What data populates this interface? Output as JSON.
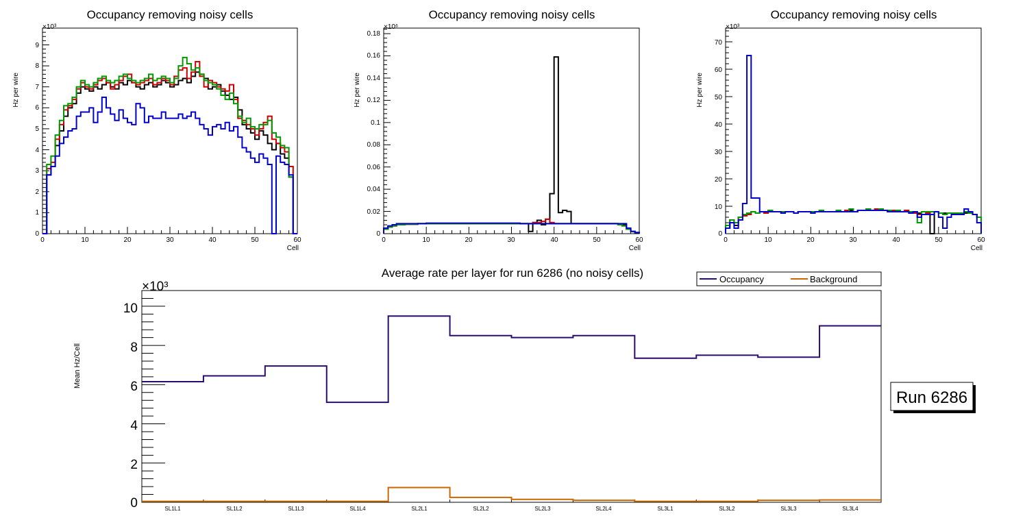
{
  "chart_data": [
    {
      "type": "line",
      "title": "Occupancy removing noisy cells",
      "xlabel": "Cell",
      "ylabel": "Hz per wire",
      "y_multiplier": "×10³",
      "xlim": [
        0,
        60
      ],
      "ylim": [
        0,
        9.8
      ],
      "x_ticks": [
        "0",
        "10",
        "20",
        "30",
        "40",
        "50",
        "60"
      ],
      "y_ticks": [
        "0",
        "1",
        "2",
        "3",
        "4",
        "5",
        "6",
        "7",
        "8",
        "9"
      ],
      "series": [
        {
          "name": "layer-black",
          "color": "#000000",
          "values": [
            0,
            2.8,
            3.2,
            4.2,
            4.9,
            5.6,
            6.0,
            6.2,
            6.7,
            7.0,
            6.9,
            6.8,
            7.0,
            6.9,
            7.1,
            7.2,
            7.0,
            6.9,
            7.2,
            7.1,
            7.3,
            7.2,
            7.0,
            6.9,
            7.1,
            7.2,
            7.0,
            7.1,
            7.3,
            7.2,
            7.0,
            7.1,
            7.3,
            7.4,
            7.2,
            7.5,
            7.7,
            7.6,
            7.4,
            6.9,
            7.0,
            7.1,
            6.8,
            6.6,
            6.4,
            6.5,
            5.9,
            5.2,
            5.0,
            4.8,
            4.5,
            4.9,
            4.7,
            4.3,
            4.0,
            4.3,
            3.8,
            3.6,
            2.7,
            0
          ]
        },
        {
          "name": "layer-red",
          "color": "#cc0000",
          "values": [
            0,
            3.1,
            3.4,
            4.5,
            5.2,
            5.9,
            6.1,
            6.4,
            6.9,
            7.2,
            7.0,
            6.9,
            7.1,
            7.3,
            7.4,
            7.2,
            6.9,
            7.1,
            7.3,
            7.5,
            7.6,
            7.2,
            7.1,
            7.2,
            7.3,
            7.4,
            7.1,
            7.2,
            7.4,
            7.3,
            7.1,
            7.5,
            7.8,
            7.9,
            7.4,
            7.7,
            8.2,
            7.5,
            7.0,
            7.3,
            7.2,
            7.0,
            6.9,
            6.8,
            7.1,
            6.4,
            5.5,
            5.4,
            5.2,
            5.0,
            4.7,
            5.0,
            5.3,
            5.6,
            4.5,
            4.3,
            4.1,
            3.9,
            3.2,
            0
          ]
        },
        {
          "name": "layer-green",
          "color": "#009900",
          "values": [
            0,
            3.3,
            3.7,
            4.7,
            5.4,
            6.1,
            6.2,
            6.5,
            7.0,
            7.3,
            7.1,
            7.0,
            7.2,
            7.4,
            7.5,
            7.3,
            7.2,
            7.3,
            7.5,
            7.6,
            7.4,
            7.3,
            7.2,
            7.3,
            7.4,
            7.6,
            7.3,
            7.4,
            7.5,
            7.4,
            7.2,
            7.4,
            8.0,
            8.4,
            8.1,
            7.8,
            7.9,
            7.6,
            7.3,
            7.2,
            7.1,
            6.9,
            6.6,
            6.4,
            6.7,
            6.2,
            5.6,
            5.3,
            5.5,
            5.1,
            5.0,
            5.2,
            5.2,
            5.4,
            4.8,
            4.6,
            4.2,
            4.1,
            2.7,
            0
          ]
        },
        {
          "name": "layer-blue",
          "color": "#0000cc",
          "values": [
            0,
            2.8,
            3.2,
            3.7,
            4.3,
            4.6,
            4.9,
            5.0,
            5.6,
            5.8,
            5.8,
            6.0,
            5.3,
            5.8,
            6.5,
            6.0,
            5.7,
            5.4,
            5.9,
            5.5,
            5.3,
            5.2,
            6.2,
            6.0,
            5.3,
            5.6,
            5.5,
            5.5,
            5.8,
            5.5,
            5.5,
            5.5,
            5.7,
            5.5,
            5.6,
            5.8,
            5.5,
            5.2,
            5.0,
            4.7,
            5.1,
            5.2,
            5.0,
            5.3,
            4.9,
            5.1,
            4.6,
            4.1,
            3.9,
            3.6,
            3.4,
            3.8,
            3.6,
            3.3,
            0,
            3.7,
            3.4,
            3.3,
            2.8,
            0
          ]
        }
      ]
    },
    {
      "type": "line",
      "title": "Occupancy removing noisy cells",
      "xlabel": "Cell",
      "ylabel": "Hz per wire",
      "y_multiplier": "×10⁶",
      "xlim": [
        0,
        60
      ],
      "ylim": [
        0,
        0.185
      ],
      "x_ticks": [
        "0",
        "10",
        "20",
        "30",
        "40",
        "50",
        "60"
      ],
      "y_ticks": [
        "0",
        "0.02",
        "0.04",
        "0.06",
        "0.08",
        "0.1",
        "0.12",
        "0.14",
        "0.16",
        "0.18"
      ],
      "series": [
        {
          "name": "layer-black",
          "color": "#000000",
          "values": [
            0.004,
            0.006,
            0.007,
            0.008,
            0.008,
            0.0085,
            0.0085,
            0.0085,
            0.009,
            0.009,
            0.009,
            0.009,
            0.009,
            0.009,
            0.009,
            0.009,
            0.009,
            0.009,
            0.009,
            0.009,
            0.009,
            0.009,
            0.009,
            0.009,
            0.009,
            0.009,
            0.009,
            0.009,
            0.009,
            0.009,
            0.009,
            0.009,
            0.009,
            0.009,
            0.002,
            0.01,
            0.012,
            0.008,
            0.013,
            0.036,
            0.159,
            0.019,
            0.021,
            0.02,
            0.009,
            0.009,
            0.009,
            0.009,
            0.009,
            0.009,
            0.009,
            0.009,
            0.009,
            0.009,
            0.009,
            0.008,
            0.008,
            0.004,
            0.002,
            0.001
          ]
        },
        {
          "name": "layer-red",
          "color": "#cc0000",
          "values": [
            0.004,
            0.006,
            0.007,
            0.008,
            0.008,
            0.0085,
            0.0085,
            0.0085,
            0.009,
            0.009,
            0.009,
            0.009,
            0.009,
            0.009,
            0.009,
            0.009,
            0.009,
            0.009,
            0.009,
            0.009,
            0.009,
            0.009,
            0.009,
            0.009,
            0.009,
            0.009,
            0.009,
            0.009,
            0.009,
            0.009,
            0.009,
            0.009,
            0.009,
            0.009,
            0.009,
            0.01,
            0.01,
            0.011,
            0.013,
            0.01,
            0.009,
            0.009,
            0.009,
            0.009,
            0.009,
            0.009,
            0.009,
            0.009,
            0.009,
            0.009,
            0.009,
            0.009,
            0.009,
            0.009,
            0.009,
            0.008,
            0.007,
            0.004,
            0.002,
            0.001
          ]
        },
        {
          "name": "layer-green",
          "color": "#009900",
          "values": [
            0.004,
            0.006,
            0.007,
            0.008,
            0.008,
            0.0085,
            0.0085,
            0.0085,
            0.009,
            0.009,
            0.009,
            0.009,
            0.009,
            0.009,
            0.009,
            0.009,
            0.009,
            0.009,
            0.009,
            0.009,
            0.009,
            0.009,
            0.009,
            0.009,
            0.009,
            0.009,
            0.009,
            0.009,
            0.009,
            0.009,
            0.009,
            0.009,
            0.009,
            0.009,
            0.009,
            0.009,
            0.009,
            0.009,
            0.009,
            0.009,
            0.009,
            0.009,
            0.009,
            0.009,
            0.009,
            0.009,
            0.009,
            0.009,
            0.009,
            0.009,
            0.009,
            0.009,
            0.009,
            0.009,
            0.009,
            0.008,
            0.007,
            0.004,
            0.002,
            0.001
          ]
        },
        {
          "name": "layer-blue",
          "color": "#0000cc",
          "values": [
            0.005,
            0.007,
            0.008,
            0.009,
            0.009,
            0.009,
            0.009,
            0.009,
            0.009,
            0.009,
            0.0095,
            0.0095,
            0.0095,
            0.0095,
            0.0095,
            0.0095,
            0.0095,
            0.0095,
            0.0095,
            0.0095,
            0.0095,
            0.0095,
            0.0095,
            0.0095,
            0.0095,
            0.0095,
            0.0095,
            0.0095,
            0.0095,
            0.0095,
            0.0095,
            0.0095,
            0.009,
            0.009,
            0.009,
            0.009,
            0.009,
            0.009,
            0.009,
            0.009,
            0.009,
            0.009,
            0.009,
            0.009,
            0.009,
            0.009,
            0.009,
            0.009,
            0.009,
            0.009,
            0.009,
            0.009,
            0.009,
            0.009,
            0.009,
            0.009,
            0.009,
            0.005,
            0.002,
            0.001
          ]
        }
      ]
    },
    {
      "type": "line",
      "title": "Occupancy removing noisy cells",
      "xlabel": "Cell",
      "ylabel": "Hz per wire",
      "y_multiplier": "×10³",
      "xlim": [
        0,
        60
      ],
      "ylim": [
        0,
        75
      ],
      "x_ticks": [
        "0",
        "10",
        "20",
        "30",
        "40",
        "50",
        "60"
      ],
      "y_ticks": [
        "0",
        "10",
        "20",
        "30",
        "40",
        "50",
        "60",
        "70"
      ],
      "series": [
        {
          "name": "layer-black",
          "color": "#000000",
          "values": [
            2,
            5,
            3,
            6,
            7,
            7.5,
            8,
            7.5,
            8,
            8,
            8.5,
            8,
            8,
            8,
            8,
            8,
            7.5,
            8,
            8,
            8,
            8,
            8,
            8.5,
            8,
            8,
            8,
            8.5,
            8,
            8,
            8.5,
            8,
            8.5,
            8.5,
            9,
            8.5,
            8.5,
            8.5,
            8.5,
            8.5,
            8,
            8.5,
            8,
            8,
            8,
            8,
            7.5,
            8,
            8,
            0,
            8,
            7.5,
            7.5,
            7.5,
            7.5,
            7.5,
            7.5,
            7.5,
            7.5,
            7,
            6
          ]
        },
        {
          "name": "layer-red",
          "color": "#cc0000",
          "values": [
            3,
            5,
            4,
            6,
            6.5,
            7,
            8,
            7.5,
            8,
            7.5,
            8,
            8,
            8,
            7.5,
            8,
            8,
            7.5,
            8,
            8,
            8,
            7.5,
            8,
            8,
            8,
            8,
            8,
            8,
            8,
            8.5,
            8,
            8,
            8.5,
            8.5,
            9,
            8.5,
            9,
            8.5,
            8.5,
            8,
            8.5,
            8,
            8,
            8.5,
            8,
            7.5,
            7,
            8,
            7.5,
            8,
            8,
            7.5,
            7,
            7.5,
            7.5,
            7.5,
            7.5,
            8,
            7.5,
            7,
            6
          ]
        },
        {
          "name": "layer-green",
          "color": "#009900",
          "values": [
            3,
            5,
            4,
            6,
            7,
            7.5,
            8,
            7.5,
            8,
            8,
            8.5,
            8,
            8,
            8,
            8,
            8,
            7.5,
            8,
            8,
            8,
            8,
            8,
            8.5,
            8,
            8,
            8,
            8.5,
            8,
            8,
            9,
            8,
            8.5,
            8.5,
            9,
            8.5,
            8.5,
            9,
            8.5,
            8.5,
            8,
            8.5,
            8,
            8,
            8,
            8,
            4,
            8,
            8,
            8,
            8,
            7.5,
            7,
            7.5,
            7.5,
            7.5,
            7.5,
            8,
            7.5,
            7,
            6
          ]
        },
        {
          "name": "layer-blue",
          "color": "#0000cc",
          "values": [
            2,
            4,
            2,
            5,
            11,
            65,
            13,
            13,
            8,
            8,
            8,
            8,
            8,
            7.5,
            8,
            8,
            7.5,
            8,
            8,
            8,
            7.5,
            8,
            8,
            8,
            8,
            8,
            8,
            8,
            8,
            8,
            8,
            8.5,
            8.5,
            8.5,
            8.5,
            8.5,
            8.5,
            8.5,
            8,
            8,
            8,
            8,
            8,
            7.5,
            8,
            6,
            7,
            7,
            7,
            8,
            6,
            2,
            6,
            7,
            7,
            7,
            9,
            8,
            7,
            4
          ]
        }
      ]
    },
    {
      "type": "line",
      "title": "Average rate per layer for run 6286 (no noisy cells)",
      "xlabel": "",
      "ylabel": "Mean Hz/Cell",
      "y_multiplier": "×10³",
      "ylim": [
        0,
        10.8
      ],
      "y_ticks": [
        "0",
        "2",
        "4",
        "6",
        "8",
        "10"
      ],
      "categories": [
        "SL1L1",
        "SL1L2",
        "SL1L3",
        "SL1L4",
        "SL2L1",
        "SL2L2",
        "SL2L3",
        "SL2L4",
        "SL3L1",
        "SL3L2",
        "SL3L3",
        "SL3L4"
      ],
      "series": [
        {
          "name": "Occupancy",
          "color": "#2a0a6e",
          "values": [
            6.15,
            6.45,
            6.95,
            5.1,
            9.5,
            8.5,
            8.4,
            8.5,
            7.35,
            7.5,
            7.4,
            9.0
          ]
        },
        {
          "name": "Background",
          "color": "#cc6600",
          "values": [
            0.05,
            0.05,
            0.05,
            0.05,
            0.75,
            0.25,
            0.15,
            0.1,
            0.05,
            0.05,
            0.1,
            0.12
          ]
        }
      ],
      "legend": {
        "position": "top-right",
        "items": [
          "Occupancy",
          "Background"
        ]
      }
    }
  ],
  "run_label": "Run 6286"
}
